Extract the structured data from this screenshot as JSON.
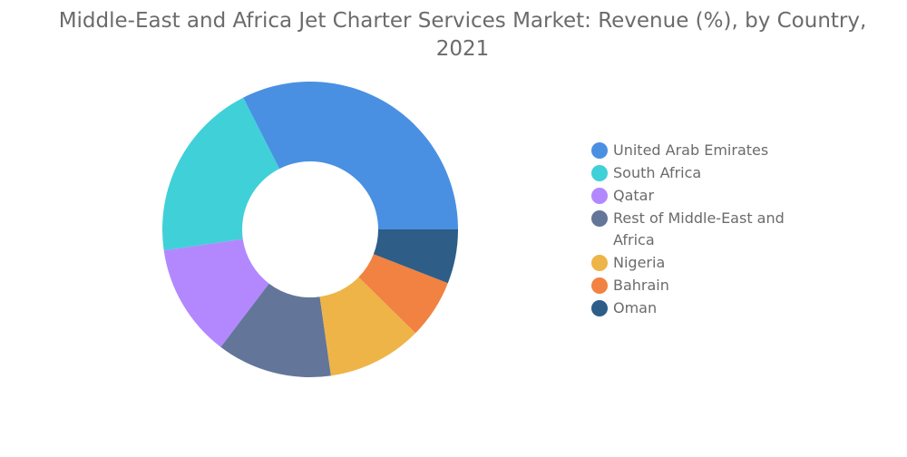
{
  "chart_data": {
    "type": "pie",
    "variant": "donut",
    "title": "Middle-East and Africa Jet Charter Services Market: Revenue (%), by Country, 2021",
    "title_line1": "Middle-East and Africa Jet Charter Services Market: Revenue (%), by Country,",
    "title_line2": "2021",
    "categories": [
      "United Arab Emirates",
      "South Africa",
      "Qatar",
      "Rest of Middle-East and Africa",
      "Nigeria",
      "Bahrain",
      "Oman"
    ],
    "legend_labels": [
      "United Arab Emirates",
      "South Africa",
      "Qatar",
      "Rest of Middle-East and Afri­ca",
      "Nigeria",
      "Bahrain",
      "Oman"
    ],
    "values": [
      30.7,
      18.7,
      11.7,
      11.9,
      9.8,
      6.1,
      5.6
    ],
    "unit": "%",
    "colors": [
      "#4a90e2",
      "#40d0d8",
      "#b388ff",
      "#637699",
      "#eeb447",
      "#f18242",
      "#2e5d87"
    ],
    "legend_position": "right"
  }
}
